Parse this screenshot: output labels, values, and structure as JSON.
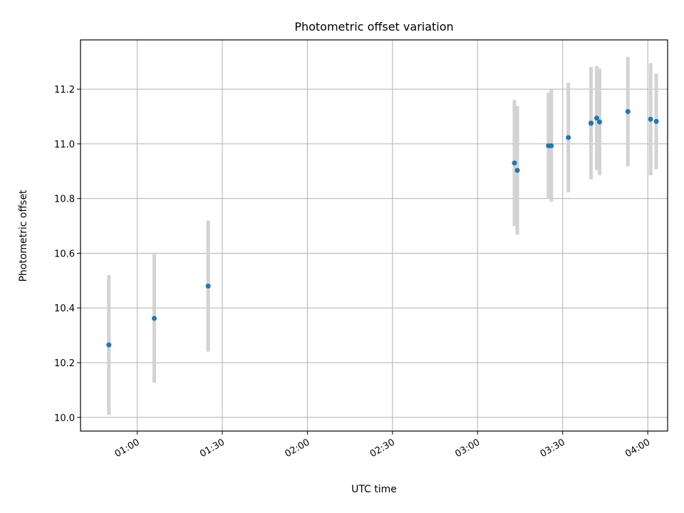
{
  "chart_data": {
    "type": "scatter",
    "title": "Photometric offset variation",
    "xlabel": "UTC time",
    "ylabel": "Photometric offset",
    "x_axis": {
      "kind": "time",
      "range": [
        "00:40",
        "04:07"
      ],
      "ticks": [
        "01:00",
        "01:30",
        "02:00",
        "02:30",
        "03:00",
        "03:30",
        "04:00"
      ]
    },
    "y_axis": {
      "range": [
        9.95,
        11.38
      ],
      "ticks": [
        "10.0",
        "10.2",
        "10.4",
        "10.6",
        "10.8",
        "11.0",
        "11.2"
      ]
    },
    "grid": true,
    "colors": {
      "marker": "#1f77b4",
      "errorbar": "#d3d3d3"
    },
    "points": [
      {
        "x": "00:50",
        "y": 10.265,
        "err": 0.255
      },
      {
        "x": "01:06",
        "y": 10.362,
        "err": 0.235
      },
      {
        "x": "01:25",
        "y": 10.48,
        "err": 0.24
      },
      {
        "x": "03:13",
        "y": 10.93,
        "err": 0.23
      },
      {
        "x": "03:14",
        "y": 10.903,
        "err": 0.235
      },
      {
        "x": "03:25",
        "y": 10.993,
        "err": 0.195
      },
      {
        "x": "03:26",
        "y": 10.993,
        "err": 0.205
      },
      {
        "x": "03:32",
        "y": 11.023,
        "err": 0.2
      },
      {
        "x": "03:40",
        "y": 11.075,
        "err": 0.205
      },
      {
        "x": "03:40",
        "y": 11.076,
        "err": 0.205
      },
      {
        "x": "03:42",
        "y": 11.094,
        "err": 0.19
      },
      {
        "x": "03:43",
        "y": 11.08,
        "err": 0.195
      },
      {
        "x": "03:53",
        "y": 11.118,
        "err": 0.2
      },
      {
        "x": "04:01",
        "y": 11.09,
        "err": 0.205
      },
      {
        "x": "04:03",
        "y": 11.082,
        "err": 0.175
      }
    ]
  }
}
